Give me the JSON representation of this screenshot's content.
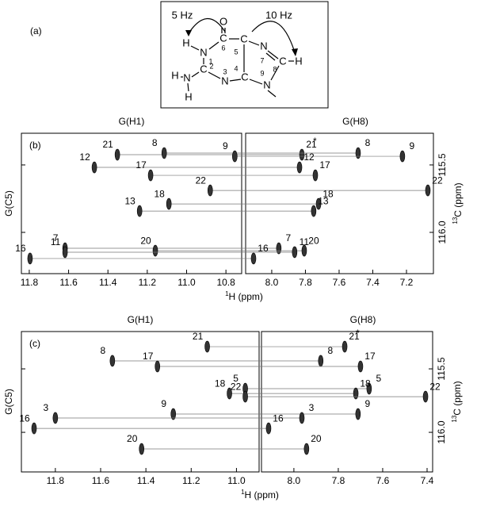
{
  "panel_a": {
    "label": "(a)",
    "couplings": [
      "5 Hz",
      "10 Hz"
    ],
    "atoms": [
      "O",
      "H",
      "N",
      "1",
      "C",
      "6",
      "5",
      "C",
      "N",
      "7",
      "8",
      "C",
      "H",
      "2",
      "C",
      "4",
      "C",
      "H",
      "N",
      "3",
      "N",
      "9",
      "N",
      "H"
    ]
  },
  "chart_data": [
    {
      "type": "scatter",
      "panel_label": "(b)",
      "ylabel": "G(C5)",
      "y2label_isotope": "13",
      "y2label": "C (ppm)",
      "xlabel_isotope": "1",
      "xlabel": "H (ppm)",
      "annotation": "*",
      "ylim": [
        115.265,
        116.306
      ],
      "yticks": [
        115.5,
        {
          "value": 116,
          "label": "116.0"
        }
      ],
      "regions": [
        {
          "title": "G(H1)",
          "xlim": [
            11.84,
            10.72
          ],
          "xticks": [
            11.8,
            11.6,
            11.4,
            11.2,
            {
              "value": 11,
              "label": "11.0"
            },
            10.8
          ]
        },
        {
          "title": "G(H8)",
          "xlim": [
            8.155,
            7.04
          ],
          "xticks": [
            {
              "value": 8,
              "label": "8.0"
            },
            7.8,
            7.6,
            7.4,
            7.2
          ]
        }
      ],
      "peaks": [
        {
          "label": "21",
          "x": [
            11.352,
            7.821
          ],
          "y": 115.424
        },
        {
          "label": "8",
          "x": [
            11.114,
            7.487
          ],
          "y": 115.412
        },
        {
          "label": "9",
          "x": [
            10.755,
            7.224
          ],
          "y": 115.436
        },
        {
          "label": "12",
          "x": [
            11.469,
            7.835
          ],
          "y": 115.518
        },
        {
          "label": "17",
          "x": [
            11.183,
            7.741
          ],
          "y": 115.577
        },
        {
          "label": "22",
          "x": [
            10.88,
            7.073
          ],
          "y": 115.689
        },
        {
          "label": "18",
          "x": [
            11.09,
            7.722
          ],
          "y": 115.789
        },
        {
          "label": "13",
          "x": [
            11.239,
            7.751
          ],
          "y": 115.842
        },
        {
          "label": "7",
          "x": [
            11.618,
            7.958
          ],
          "y": 116.118
        },
        {
          "label": "20",
          "x": [
            11.159,
            7.807
          ],
          "y": 116.136
        },
        {
          "label": "11",
          "x": [
            11.618,
            7.864
          ],
          "y": 116.147
        },
        {
          "label": "16",
          "x": [
            11.796,
            8.108
          ],
          "y": 116.194
        }
      ]
    },
    {
      "type": "scatter",
      "panel_label": "(c)",
      "ylabel": "G(C5)",
      "y2label_isotope": "13",
      "y2label": "C (ppm)",
      "xlabel_isotope": "1",
      "xlabel": "H (ppm)",
      "annotation": "*",
      "ylim": [
        115.206,
        116.312
      ],
      "yticks": [
        115.5,
        {
          "value": 116,
          "label": "116.0"
        }
      ],
      "regions": [
        {
          "title": "G(H1)",
          "xlim": [
            11.95,
            10.9
          ],
          "xticks": [
            11.8,
            11.6,
            11.4,
            11.2,
            {
              "value": 11,
              "label": "11.0"
            }
          ]
        },
        {
          "title": "G(H8)",
          "xlim": [
            8.146,
            7.375
          ],
          "xticks": [
            {
              "value": 8,
              "label": "8.0"
            },
            7.8,
            7.6,
            7.4
          ]
        }
      ],
      "peaks": [
        {
          "label": "21",
          "x": [
            11.129,
            7.771
          ],
          "y": 115.325
        },
        {
          "label": "8",
          "x": [
            11.548,
            7.879
          ],
          "y": 115.437
        },
        {
          "label": "17",
          "x": [
            11.349,
            7.7
          ],
          "y": 115.481
        },
        {
          "label": "5",
          "x": [
            10.961,
            7.661
          ],
          "y": 115.656
        },
        {
          "label": "18",
          "x": [
            11.031,
            7.721
          ],
          "y": 115.694
        },
        {
          "label": "22",
          "x": [
            10.961,
            7.407
          ],
          "y": 115.719
        },
        {
          "label": "9",
          "x": [
            11.279,
            7.711
          ],
          "y": 115.856
        },
        {
          "label": "3",
          "x": [
            11.8,
            7.964
          ],
          "y": 115.887
        },
        {
          "label": "16",
          "x": [
            11.894,
            8.114
          ],
          "y": 115.969
        },
        {
          "label": "20",
          "x": [
            11.419,
            7.943
          ],
          "y": 116.131
        }
      ]
    }
  ]
}
